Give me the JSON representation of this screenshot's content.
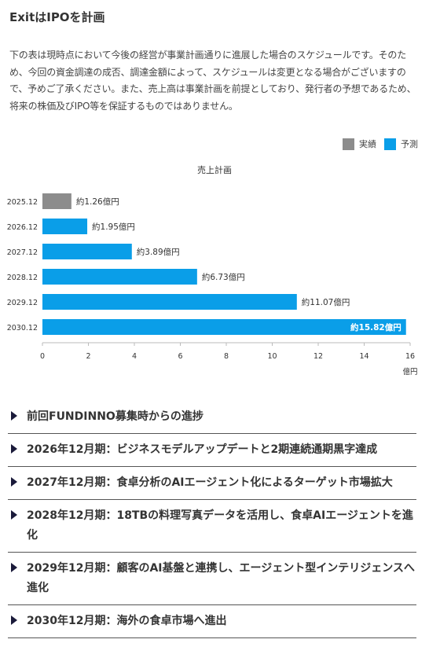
{
  "page": {
    "title": "ExitはIPOを計画",
    "intro": "下の表は現時点において今後の経営が事業計画通りに進展した場合のスケジュールです。そのため、今回の資金調達の成否、調達金額によって、スケジュールは変更となる場合がございますので、予めご了承ください。また、売上高は事業計画を前提としており、発行者の予想であるため、将来の株価及びIPO等を保証するものではありません。"
  },
  "legend": {
    "actual": "実績",
    "forecast": "予測"
  },
  "chart_data": {
    "type": "bar",
    "orientation": "horizontal",
    "title": "売上計画",
    "categories": [
      "2025.12",
      "2026.12",
      "2027.12",
      "2028.12",
      "2029.12",
      "2030.12"
    ],
    "values": [
      1.26,
      1.95,
      3.89,
      6.73,
      11.07,
      15.82
    ],
    "data_labels": [
      "約1.26億円",
      "約1.95億円",
      "約3.89億円",
      "約6.73億円",
      "約11.07億円",
      "約15.82億円"
    ],
    "status": [
      "actual",
      "forecast",
      "forecast",
      "forecast",
      "forecast",
      "forecast"
    ],
    "x_ticks": [
      0,
      2,
      4,
      6,
      8,
      10,
      12,
      14,
      16
    ],
    "xlim": [
      0,
      16
    ],
    "x_unit": "億円",
    "colors": {
      "actual": "#8c8c8c",
      "forecast": "#0a9ee8"
    },
    "legend_position": "top-right",
    "grid": false
  },
  "accordion": {
    "items": [
      {
        "label": "前回FUNDINNO募集時からの進捗"
      },
      {
        "label": "2026年12月期：ビジネスモデルアップデートと2期連続通期黒字達成"
      },
      {
        "label": "2027年12月期：食卓分析のAIエージェント化によるターゲット市場拡大"
      },
      {
        "label": "2028年12月期：18TBの料理写真データを活用し、食卓AIエージェントを進化"
      },
      {
        "label": "2029年12月期：顧客のAI基盤と連携し、エージェント型インテリジェンスへ進化"
      },
      {
        "label": "2030年12月期：海外の食卓市場へ進出"
      }
    ]
  }
}
